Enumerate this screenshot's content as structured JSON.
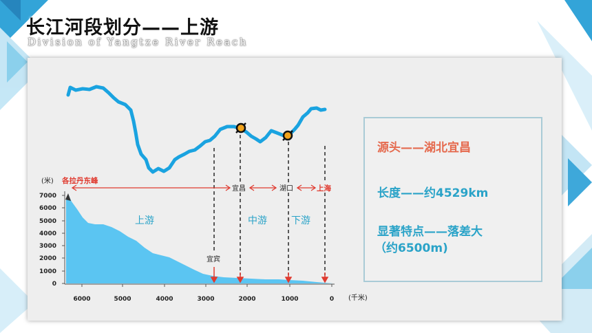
{
  "header": {
    "title": "长江河段划分——上游",
    "subtitle": "Division of Yangtze River Reach"
  },
  "info": {
    "source": "源头——湖北宜昌",
    "length": "长度——约4529km",
    "feature_line1": "显著特点——落差大",
    "feature_line2": "（约6500m)"
  },
  "diagram": {
    "y_unit": "(米)",
    "x_unit": "(千米)",
    "y_ticks": [
      "7000",
      "6000",
      "5000",
      "4000",
      "3000",
      "2000",
      "1000",
      "0"
    ],
    "x_ticks": [
      "6000",
      "5000",
      "4000",
      "3000",
      "2000",
      "1000",
      "0"
    ],
    "source_peak": "各拉丹东峰",
    "city_yichang": "宜昌",
    "city_hukou": "湖口",
    "city_shanghai": "上海",
    "city_yibin": "宜宾",
    "reach_upper": "上游",
    "reach_middle": "中游",
    "reach_lower": "下游"
  },
  "colors": {
    "river": "#1aa3e0",
    "profile_fill": "#5bc5f2",
    "accent_red": "#e03a2f",
    "reach_label": "#2aa3c8",
    "info_source": "#e56a4e",
    "info_text": "#2aa3c8"
  }
}
